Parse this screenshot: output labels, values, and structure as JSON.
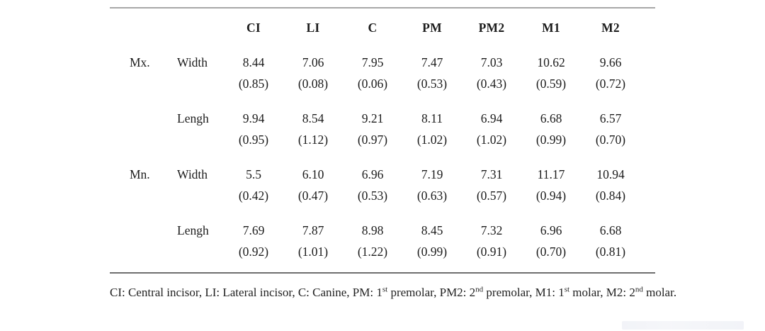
{
  "table": {
    "columns": [
      "CI",
      "LI",
      "C",
      "PM",
      "PM2",
      "M1",
      "M2"
    ],
    "rows": [
      {
        "group": "Mx.",
        "measure": "Width",
        "values": [
          "8.44",
          "7.06",
          "7.95",
          "7.47",
          "7.03",
          "10.62",
          "9.66"
        ],
        "sd": [
          "(0.85)",
          "(0.08)",
          "(0.06)",
          "(0.53)",
          "(0.43)",
          "(0.59)",
          "(0.72)"
        ]
      },
      {
        "group": "",
        "measure": "Lengh",
        "values": [
          "9.94",
          "8.54",
          "9.21",
          "8.11",
          "6.94",
          "6.68",
          "6.57"
        ],
        "sd": [
          "(0.95)",
          "(1.12)",
          "(0.97)",
          "(1.02)",
          "(1.02)",
          "(0.99)",
          "(0.70)"
        ]
      },
      {
        "group": "Mn.",
        "measure": "Width",
        "values": [
          "5.5",
          "6.10",
          "6.96",
          "7.19",
          "7.31",
          "11.17",
          "10.94"
        ],
        "sd": [
          "(0.42)",
          "(0.47)",
          "(0.53)",
          "(0.63)",
          "(0.57)",
          "(0.94)",
          "(0.84)"
        ]
      },
      {
        "group": "",
        "measure": "Lengh",
        "values": [
          "7.69",
          "7.87",
          "8.98",
          "8.45",
          "7.32",
          "6.96",
          "6.68"
        ],
        "sd": [
          "(0.92)",
          "(1.01)",
          "(1.22)",
          "(0.99)",
          "(0.91)",
          "(0.70)",
          "(0.81)"
        ]
      }
    ]
  },
  "footnote": {
    "segments": [
      {
        "text": "CI: Central incisor, LI: Lateral incisor, C: Canine, PM: 1"
      },
      {
        "sup": "st"
      },
      {
        "text": " premolar, PM2: 2"
      },
      {
        "sup": "nd"
      },
      {
        "text": " premolar, M1: 1"
      },
      {
        "sup": "st"
      },
      {
        "text": " molar, M2: 2"
      },
      {
        "sup": "nd"
      },
      {
        "text": " molar."
      }
    ]
  },
  "colors": {
    "rule_top": "#a8a8a8",
    "rule_bottom": "#6f6f6f",
    "text": "#1c1c1c"
  }
}
